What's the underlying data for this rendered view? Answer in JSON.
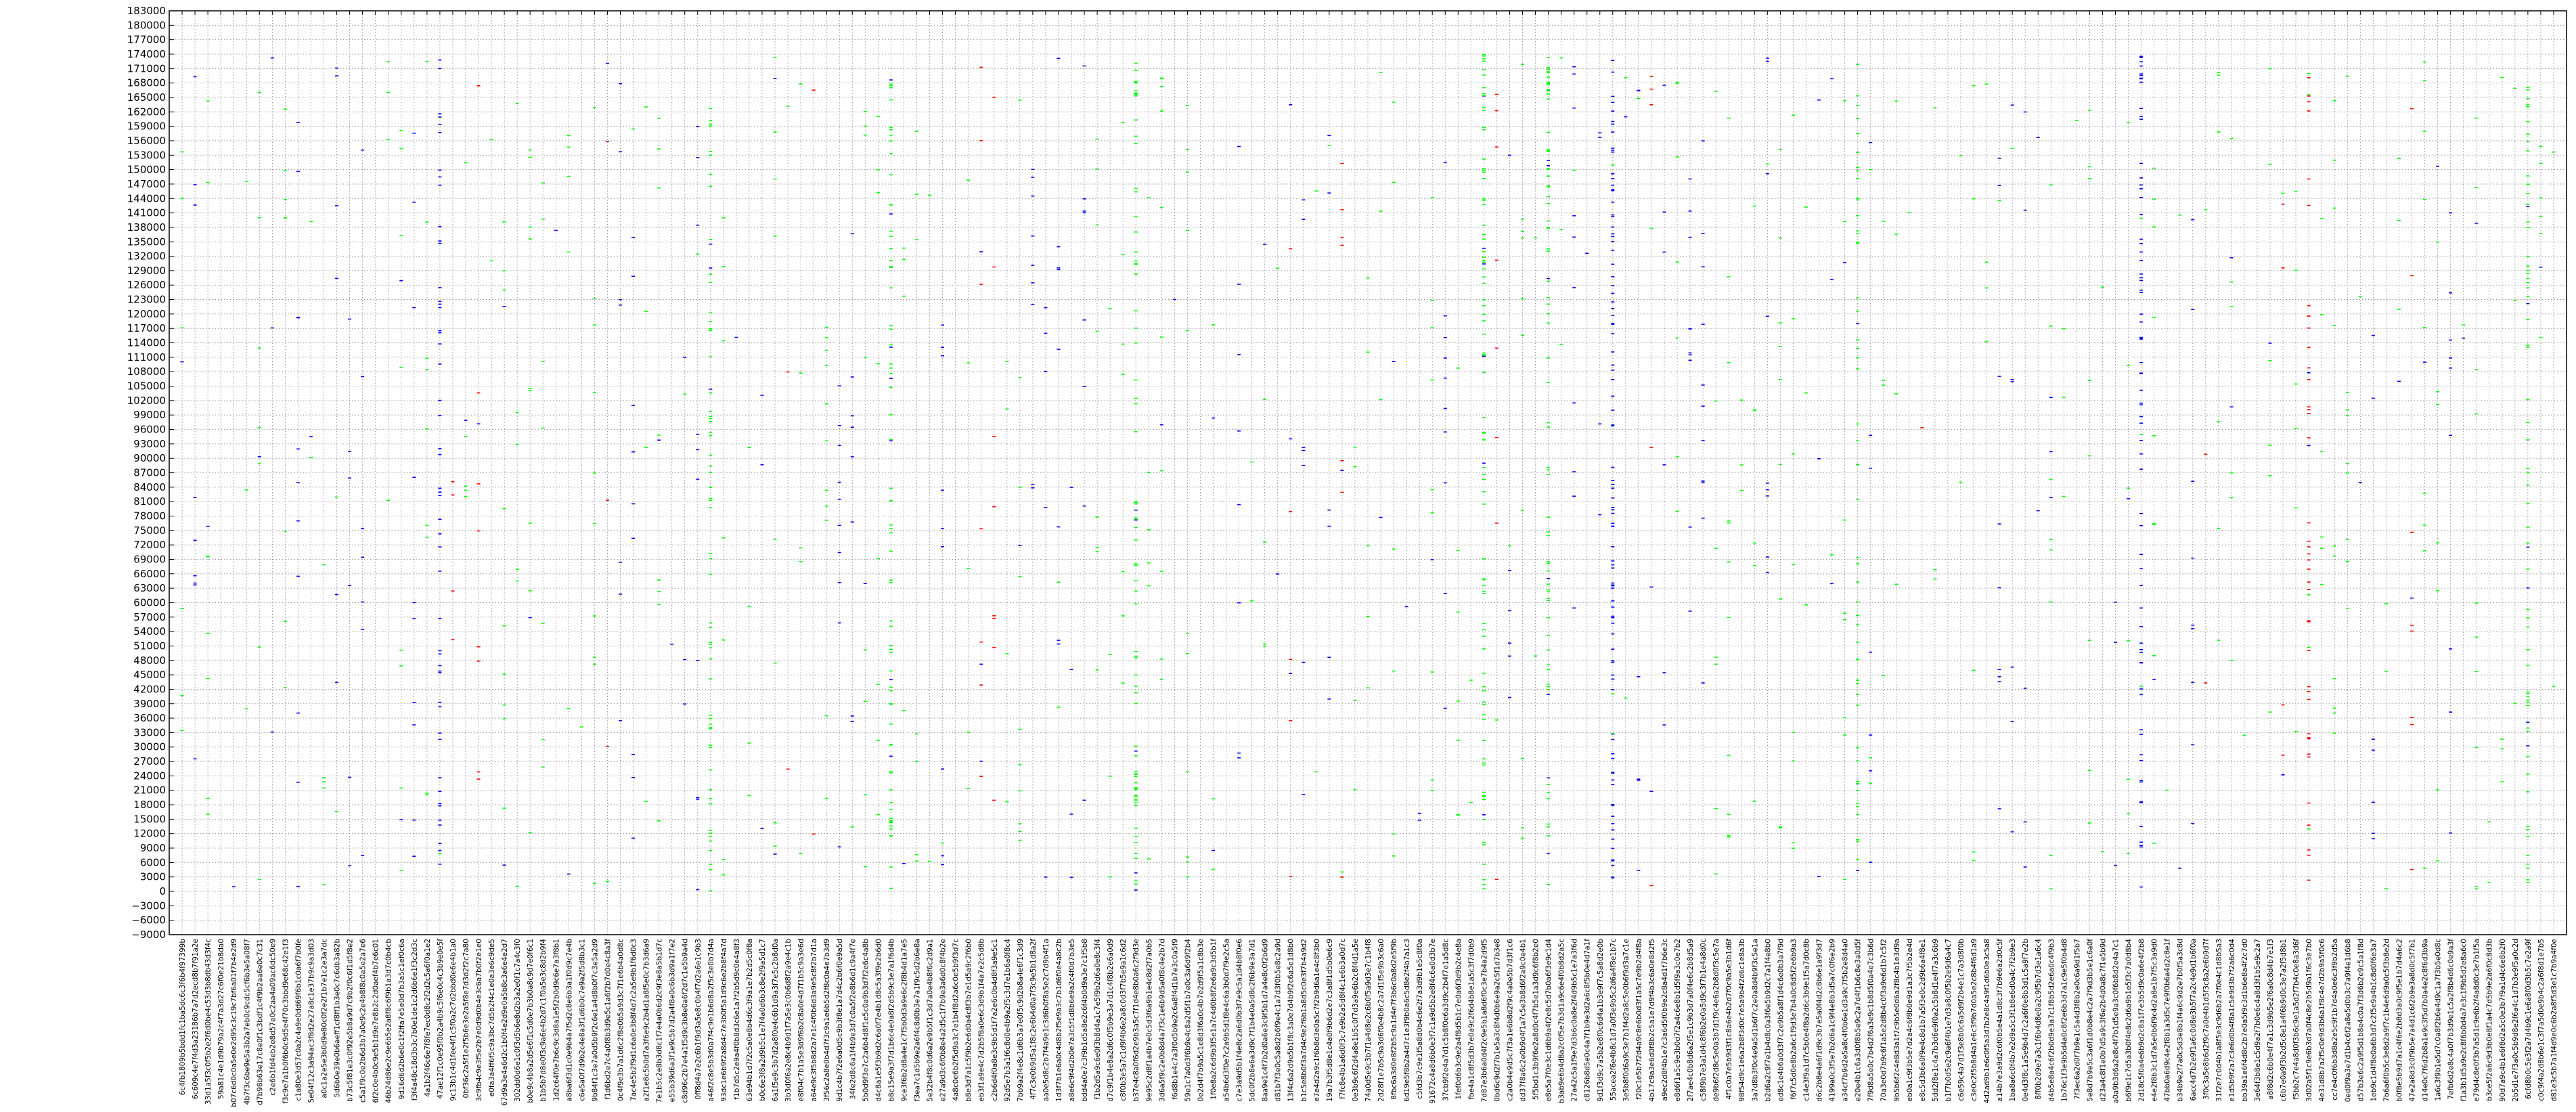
{
  "chart_data": {
    "type": "scatter",
    "title": "",
    "xlabel": "",
    "ylabel": "",
    "ylim": [
      -9000,
      183000
    ],
    "yticks": [
      -9000,
      -6000,
      -3000,
      0,
      3000,
      6000,
      9000,
      12000,
      15000,
      18000,
      21000,
      24000,
      27000,
      30000,
      33000,
      36000,
      39000,
      42000,
      45000,
      48000,
      51000,
      54000,
      57000,
      60000,
      63000,
      66000,
      69000,
      72000,
      75000,
      78000,
      81000,
      84000,
      87000,
      90000,
      93000,
      96000,
      99000,
      102000,
      105000,
      108000,
      111000,
      114000,
      117000,
      120000,
      123000,
      126000,
      129000,
      132000,
      135000,
      138000,
      141000,
      144000,
      147000,
      150000,
      153000,
      156000,
      159000,
      162000,
      165000,
      168000,
      171000,
      174000,
      177000,
      180000,
      183000
    ],
    "ytick_labels": [
      "−9000",
      "−6000",
      "−3000",
      "0",
      "3000",
      "6000",
      "9000",
      "12000",
      "15000",
      "18000",
      "21000",
      "24000",
      "27000",
      "30000",
      "33000",
      "36000",
      "39000",
      "42000",
      "45000",
      "48000",
      "51000",
      "54000",
      "57000",
      "60000",
      "63000",
      "66000",
      "69000",
      "72000",
      "75000",
      "78000",
      "81000",
      "84000",
      "87000",
      "90000",
      "93000",
      "96000",
      "99000",
      "102000",
      "105000",
      "108000",
      "111000",
      "114000",
      "117000",
      "120000",
      "123000",
      "126000",
      "129000",
      "132000",
      "135000",
      "138000",
      "141000",
      "144000",
      "147000",
      "150000",
      "153000",
      "156000",
      "159000",
      "162000",
      "165000",
      "168000",
      "171000",
      "174000",
      "177000",
      "180000",
      "183000"
    ],
    "grid": true,
    "grid_style": "dotted",
    "colors": {
      "green": "#00ff00",
      "blue": "#0000ff",
      "red": "#ff0000",
      "axis": "#000000",
      "grid": "#808080"
    },
    "categories": [
      "6c4fb1809b5bdd1fc1ba5dc6c3f6b4f97399b",
      "6c609c4e7f4d3a23186b7a7d2ecd8b7f91a2e",
      "33d1a5f3c0f5b2e2f6d0be4c53d3b8db43d3f4c",
      "59a81c4e1d9b79a2c4f7a3d27c6f0e21b8da0",
      "b07c6d0c0a5e0e2d95c3c19c7bf6a01f7b4e2d9",
      "4b7f3c6be9e5a3b2a7eb0c9cdc5cf6b3e5a08f7",
      "d7b98b63e17c8e0f1c3bdf1c4f9b2aa6e0c7c31",
      "c2e6b1fd4eb2e8d57e0c2aa4a09ac6dc50e9",
      "f3c9e7a1b0f6b0c9d5e4f70c3bbd9e68c42e1f3",
      "c1a80e3d57c0a2c4a9e0dd69f6b1c0a6f7b0fe",
      "5e04f12c3a94ac3f8d2e27a8c1e37b9c9a3d03",
      "a0c1a2e5e3b0d9e80c0f2e2f1b7e1c2e3a7dc",
      "5d6b0e39e0b6aeff1cf8ff1b3e0c7c6db3a82b",
      "b73c5f81e3c0f92e5b8a9d7c9b2f0c6f1d5f8e2",
      "c5a1f9c0e2b6d3b7a0e9c2e4b8f8c0a5e2a7e6",
      "6f2c0e4b0c9e5b1d9e7e8b2c2d0aef4b7e6c01",
      "46b24d86e2c9e6b5e2a8f8c6f9b1a3d7c0b4cb",
      "9d16d6d2b6e0c1f2ffa7e5e0d7b3a5c1ef0c6a",
      "f3f4a48c18d3b3c7b0e1de1c2d6b6e1f3c2d3c",
      "4a1b2f46c6e7f8fe7ec0d8c2f2d2c5a6f0a1e2",
      "47ae12f1c0e95f0b2a4b9c5f6e0c4c3b9e0e5f",
      "9c13b1c4d1fee4f1c5f0a2c7d2bbd0e6e4b1a0",
      "0bf36c2a5f1e2f5b6e3e2a5f8e7d3d2f2c7a80",
      "3c9fb4c9e3f5e2b7e0d9d0b4e3c6a7b0f2e1e0",
      "e0fa3a4ff6f5c9a3bc7d5b2f4c1e0a3e6c9de5",
      "67d9a3e4a6d2c1b0f4e2d9e0a5b8c3a6e4e2d7",
      "302dd0d6e1c0f3d5b6e8d2b3a2e0f1c7a4c3f0",
      "b0e9c4b8a2d5e6f1c5d0e7b3b0a8c9d7e0f6c1",
      "b1b5b7d8e0f3c9a6e4b2d7c1f0a5e3c8d2b9f4",
      "1d2c64f0e7b6c9c3d8a1e5f2b0d9c6e7a3f8b1",
      "a8ba6f3d1c0e9b4a7f5d2c8e6b3a1f0d9c7e4b",
      "c6e5a0f7d9b2c4e8a3f1d6b0c7e9a2f5d8b3c1",
      "9b84f1c3e7a0d5b9f2c6e1a4d8b0f7c3e5a2d9",
      "f1d6bd2e7c4a0f8b3d9e5c1a6f2b7d0e4c8a3f",
      "0c4f9e3b7a1d6c2f8e0b5a9d3c7f1e6b4a0d8c",
      "7ac4e5b2f9d1c6a0e3b8f4d7c2a5e9b1f6d0c3",
      "a2f1e8c5b0d7a3f6e9c2b4d1a8f5e0c7b3d6a9",
      "7e1b5c2e8b3d8c1f7e4a0b6d2c9f3e8a5b1d7c",
      "e55b39d6a3f1e9c5b7d2a4f8e0c6b3d9a1f7e2",
      "c8d96c2b7e4a1f5d9c3b8e0a6f2d7c1e5b9a4d",
      "0ff8d4a7e2c6b1f9d3a5e8c0b4f7d2a6e1c9b3",
      "a46f2c8e5b3d0a7f4c9e1b6d8a2f5c3e0b7d4a",
      "93dc1e6b9f2a8d4c7e3b0f5a1d9c6e2b8f4a7d",
      "f1b7d5c2e9a4f0b8d3c6e1a7f2b5d9c0e4a8f3",
      "63e94b1d7f2c5a0e8b4d6c3f9a1e7b2d5c0f8a",
      "b0c6e3f8a2d9b5c1e7f4a0d6b3c8e2f9a5d1c7",
      "6a1f5e9c3b7d2a8f0e4c6b1d9a3f7e5c2b8d0a",
      "3b3d0f6a2e8c4b9d1f7a5e3c0b6d8f2a9e4c1b",
      "e8f04c7b1a5e3d9f6b2c8a0e4d7f1b5c9a3e6d",
      "a64e9c3f5b8d2a7e1c4f0b6d3a9e5c8f2b7d1a",
      "3f56c2a8e0b4d7f3c9a1e6b5d2f8c0a4e7b3d9",
      "9d1c4b7f2e6a0d5c9b3f8e1a7d4c2b6f0e9a5d",
      "34fe2d8c6a1f4b9e3d7c0a5f2e8b6d1c9a4f7e",
      "5b0d9f3e7c2a6b4d8f1e5c0a9b3d7f2e6c4a8b",
      "d4c8a1e5f3b9d2c6a0f7e4b1d8c5a3f9e2b6d0",
      "b8c15e9a3f7d1b6c4e0a8f2d5b9c3e7a1f6d4b",
      "9ce3f6b2d8a4e1c7f5b0d3a9e6c2f8b4d1a7e5",
      "f3ea7c1d5b9e2a6f4c8d0b3e7a1f9c5d2b6e8a",
      "5e32b4f8c0d6a2e9b5f1c3d7a0e4b8f6c2d9a1",
      "e27a9d3c6f0b8e4a2d5c1f7b9e3a6d0c8f4b2e",
      "4a8c0e6b2f5d9a3c7e1b4f8d2a6c0e5b9f3d7c",
      "b8e3d7a1c5f9b2e6d0a4c8f3b7e1d5a9c2f6b0",
      "eb3f1a9e4c7d2b5f8a0e6c3d9b1f4a7e2c5d8b",
      "c2b6d4f0a8e3c9b5d1f7a2e6c0b4d8f3a9e5c1",
      "92d5e7b3a1f6c8d0e4b9a2f5c3d7e1b6a0f8c4",
      "7bb9a2f4e8c1d6b3a7e0f5c9d2b8a4e6f1c3d9",
      "4f7c3e0b9d5a1f8c2e6b4d0a7f3c9e5b1d8a2f",
      "aa0e5d8c2b7f4a9e1c3d6b0f8a5e2c7d9b4f1a",
      "1d3f7b1e6a0c4d8b2f5e9a3c7b1d6f0e4a8c2b",
      "a8e6c9f4d2b0e7a3c5f1d8b6e9a2c4f0d7b3e5",
      "bdd4a0e7c3f9b1d5a8e2c6f4b0d9a3e7c1f5b8",
      "f1b2d5a9c6e0f3b8d4a1c7e5f9b2d6a0e8c3f4",
      "d7c9f1b4e8a2d6c0f5b9e3a7d1c4f8b2e6a0d9",
      "c8f0b3e5a7c1d9f4b6e2a8c0d3f7b5e9a1c6d2",
      "b37e4c8a0f6d2e9b3a5c7f1d4e8b0a6c2f9d3e",
      "9e95c2d8f1a4b7e0c5d3f6a9b1e4c8d2f7a0b5",
      "3d6a5f9c2e0b8d4a7f3c1e6b9d5a0f8c4e2b7d",
      "f6d8b1e4c7a3f0d5b9e2c6a8f4d1b7e3c0a5f9",
      "59e1c7a0d3f6b9e4c8a2d5f1b7e0c3a6d9f2b4",
      "0e2d4f7b9a5c1e8d3f6a0c4b7e2d9f5a1c8b3e",
      "1f0e8a2c6d9b3f5e1a7c4d0b8f2e6a9c3d5b1f",
      "a54b6d3f0e7c2a9b5d1f8e4c6a3b0d7f9e2c5a",
      "c7e3a9d5b1f4e8c2a6d0b3f7e9c5a1d4b8f0e6",
      "5dc0f2b8e6a3d9c7f1b4e0a5d8c2f6b9e3a7d1",
      "8aa9e1c4f7b2d0a6e3c9f5b1d7a4e8c0f2b6d9",
      "d81b7f3e0c5a8d2b6f9e4c1a7d3f0b5e8c2a9d",
      "13f4c6a2d9e5b1f8c3a0e7d4b9f2c6a5e1d8b0",
      "b1c5e8b0f3a7d4c9e2f6b1a8d5c0e3f7b4a9d2",
      "e7e4d2a9c1f6b8d3e0a5c7f2b9d6a1e4c8f3b0",
      "19a7b3f5d8e1c4a0f9b6d2e7c3a8f1d5b0e6c9",
      "f7fc8e4b1a6d0f3c7e9b2a5d8f4c1e6b3a0d7c",
      "0e3b9c6f2d4a8e1b5c0f7d3a9e6b2c8f4d1a5e",
      "74a0d5e9c3b7f1a4d8e2c6b0f5a9d3e7c1b4f8",
      "2d28f1e7b5c9a3d6f0e4b8c2a7d1f5e9b3c6a0",
      "8fbc6a3d0e8f2b5c9a1d4e7f3b6c0a8d2e5f9b",
      "6d19e5f8b2a4d7c1e3f9b0a6c5d8e2f4b7a1c3",
      "c5fd3b7c9e1f5a8d0b4c6e2f7a3d9b1e5c8f0a",
      "91672c4a8d6b0e3f7c1a9d5b2e8f4c6a0d3b7e",
      "37cb9f2e4a7d1c5b8f0e6a3d9c2b4f7e1a5d8c",
      "1fef0d6b3c9e2a4f8d5b1c7e0a6f3d9b2c4e8a",
      "fbe4a1c8f5d3b7e0a9c2f6d4b8e1a5c3f7d0b9",
      "7d87e3b6a0d4f2c9e5b1a8d6f0c3e7b4a2d9f5",
      "0bd6c9d2f7b1e5a3c8f4d0b6e9a2c5f1d7b3e8",
      "c2a0b4e9d5c7f3a1e6b8d2f9c4a0e5b7d3f1c6",
      "dd37f8a6c2e0b9d4f1a7c5e3b8d6f2a9c0e4b1",
      "5f5bd1c3b9f6e2a8d0c4f7b5e1a3d9c6f8b2e0",
      "e8e5a7f0e3c1d6b9a4f2e8c5d7b0a6f3e9c1d4",
      "b3ab9e6b4d8a2c0f5e7b3d1a9c6e4f0b8d2a5c",
      "27a42c5a1f9e7d3b6c0a8e2f4d9b5c1e7a3f6d",
      "c8126b8d5e0c4a7f1b9e3d2a6c8f5b0e4d7a1f",
      "9d1f3d9c7a5b2e8f0c6d4a1b3e9f7c5a8d2e0b",
      "55acea2f6e4b8c1d7a0f3e9b5c2d6a4f8e1b7c",
      "3e5b8f0d6a9c3e7b1f4d2a8c5e0b6f9d3a7c1e",
      "f20c1e5b7f2d4a9c8e6b0d3f1a5c7e9b2d4f8a",
      "4b17c9a3e6d0f8b2c5a1e7d9f4b3c6a0e8d2f5",
      "a9ec2d8f4b1e7c3a6d5f0b9e2c8a4d1f7b6e3c",
      "e8d6f1a5c9e3b0d7f2a4c6e8b1d5f9a3c0e7b2",
      "2f7ae4c0b8d6a2f5e1c9b3d7a0f4e6c2b8d5a9",
      "c58f9b7e3a1d4c8f6b2e0a5d9c3f7b1e4a8d0c",
      "de9b6f2d8c5e0a3b7d1f9c4e6a2b8d0f3c5e7a",
      "4f1c0a7e5b9d3f1c8a6e4b2d7f0c9a5e3b1d6f",
      "98f54d9c1e6a2b8f3d0c7e5a9b4f2d6c1e8a3b",
      "3a7d8b3f0c4e9a5d1b6f7c2e0a8d4b9f3c5e1a",
      "b2d6a2c9f7e1b4d8c0a3f6e5b9d2c7a1f4e8b0",
      "ed8c1e4b6a0d3f7c2e9b5a8f1d4c6e0b3a7f9d",
      "f6f7c5d0e8b2a6c1f9d3e7b4a0c8d5f2e6b9a3",
      "c14e3f9a1d7c5b0e4f8a2d6c3b9e1f5a7d0c8b",
      "d6c2b8e4a6f1d9c3b7e5a0f4d2c8b6e1a9f3d7",
      "4199a0c3f5e7b2d6a1c9f4e8b3d5a7c0f6e2b9",
      "a34cf7b9d2e5a8c4f0b6e1d3a9c7f5b2e8d4a0",
      "e20e4b1c6a3d0f8b5e9c2a7d4f1b6c8e3a0d5f",
      "7f9d8a5e0c7b4d2f6a3e9c1b8d5f0a4e7c3b6d",
      "70a3e0d7b9c6f1a5e2d8b4c0f3a9e6d1b7c5f2",
      "9b5b6f2c4e8d3a1f7c9b5e0d6a2f8c4b1e3d9a",
      "eb0a1c9f3b5e7d2a4c6f8b0e9d1a3c7f5b2e4d",
      "e8c5d3b6a0f9e4c8d1b7a5f3e0c2d9b6a4f8e1",
      "5dd2f8e1c4a7b3d6e9f0a2c5b8d1e4f7a3c6b9",
      "b1f7b0d5e2c9a6f4b1e7d3a8c0f5b2e9d6a4c7",
      "c6e59c4a7d1f3e8b0c6a5d9f2b4e1c7a3d8f0b",
      "c3e0c2f5b8d4a1e6c3f9b7d0a5e2c8b4f6d1a9",
      "4d2ad9b1e6c0f5a3d7b2e8c4a9f1d6b0e3c5a8",
      "a14b7e3a9d2c6f0b5e4a1d8c3f7b9e6a2d0c5f",
      "1ba8a6c0f4b7e2d9a5c3f1b8e6d0a4c7f2b9e3",
      "0e4d3f8c1a5e9b4d7c2a6f0e8b3d1c5a9f7e2b",
      "8ff0b2d9e7a3c1f6b4d8e0a2c9f5b7d3e1a6c4",
      "d4b5e8a4c6f2b0d9e3a7c1f8b5d2e6a0c4f9b3",
      "1b76c1f3e9b5d4a0c8f2e6b3d7a1c9e5f0b4d8",
      "7f3ec6a2d0f7b9e1c5a4d3f8b2e0c6a9d1f5b7",
      "5e8d7b9e5c3a6f1d0b8e4c2a7f9d3b5e1c6a0f",
      "d23a4c8f1e0b7d5a9c3f6e2b4d0a8c7f1e5b9d",
      "a0a9b3d6a2e8c4f7b1d5e9a3c0f6b8d2e4a7c1",
      "b6f9e1c7d5a3b0f4e8c2d6a9b1e5f3c7a0d8b4",
      "2d18c5f0a4e6b9d2c8a1f7e3b5d9c0a6e4f2b8",
      "e4e2f8b3c1d7a5e0b6f9c4d2a8e1b7f5c3a9d0",
      "47bb0a6d9c4e2f8b1a3d5c7e9f0b6a4d2c8e1f",
      "b34b9e2f7a0c5d3e8b1f4a6c9d2e7b0f5a3c8d",
      "6acc4d7b2e9f1a6c0d8e3b5f7a2c4e9d1b6f0a",
      "3f0c3a5e8b6d2f9c7a0e4b1d5f3c8a2e6b9d7f",
      "31f2e7c0d4b1a8f5e3c9d6b2a7f0e4c1d8b5a3",
      "e1d5b9f2a7c3e6d0b4f8a1c5e9d3b7f2a6c0d4",
      "bb39a1e6f4d8c2b7e0a5f9c3d1b6e8a4f2c7d0",
      "3e64f3b8e1c5d9a2f7b0e6c4a8d3f1b5e9c2a7",
      "a8f8d2c6b0e4f7a1c3d9b5e2f6a0c8d4b7e1f3",
      "c6b7e0a9f3b2d5c8e1a4f6b9d0c3e7a2f5d8b1",
      "f5bb2c7e4a8d0f3b6c9e1a5d2f7b4c0e8a3d6f",
      "3d02a5f1c9e6b3d7a0f4c8e2b5d9a1f6c3e7b0",
      "4e31d8b7a2f5c0e9d3b6a1f8c4e7d2b9a5f0c6",
      "cc7e4c0f6b3d8a2e5c9f1b7d4a0e6c3f9b2d5a",
      "0ed0f9a3e7d1b4c6f2a8e5d0b3c7a9f4e1d6b8",
      "d57b3e6c2a9f5d1b8e4c0a7f3d6b2e9c5a1f8d",
      "1eb9c1d4f8e0a6b3d7c2f5e9a4b1c8d0f6e3a7",
      "7b6a6f0b5c3e8d2a9f7c1b4e6d9a0c5f3b8e2d",
      "b0f8e5b9d7a1c4f6e2b8d3a0c9f5e1b7d4a6c2",
      "47e2a8d3c0f9b5e7a4d1c6f2b9e3a8d0c5f7b1",
      "d14e0c7f6d2b8a1e9c3f5d7b0a4e2c8f6d3b9a",
      "1a6c3f9b1e5d7c0a8f2b6e4d9c1a7f3b5e0d8c",
      "7efb6d2e8c4a0f7b3d9e1c5a2f8b4d6c0e9a3f",
      "f1a3b1d5a9e2c8f6b0d4a7e3c1f9b5d2e8a6c0",
      "e79d4c8e0f3b7a5d1c9e6b2f4a8d0c3e7b1f5a",
      "b3ce5f2a6c9d3b0e8f1a4c7d5b9e2a6f0c8d3b",
      "90d7a9c4b1e6f8d2a5c0e3b7f9a1d4c6e8b2f0",
      "2b5d1e7f3a0c5b9d8e2f6a4c1d7b3e9f5a0c2d",
      "6cfd8b0c5e3f2a7d4b9c1e6a8f0d3b5c7e2a9f",
      "c0c9f4a2d8b6e1c3f7a5d0e9b4c2a6f8d1e7b5",
      "d81e3c5b7a1f4d9e0c6b2a8f5d3e1c7b9a4f0e"
    ],
    "series": [
      {
        "color": "green",
        "points": []
      },
      {
        "color": "blue",
        "points": []
      },
      {
        "color": "red",
        "points": []
      }
    ]
  }
}
